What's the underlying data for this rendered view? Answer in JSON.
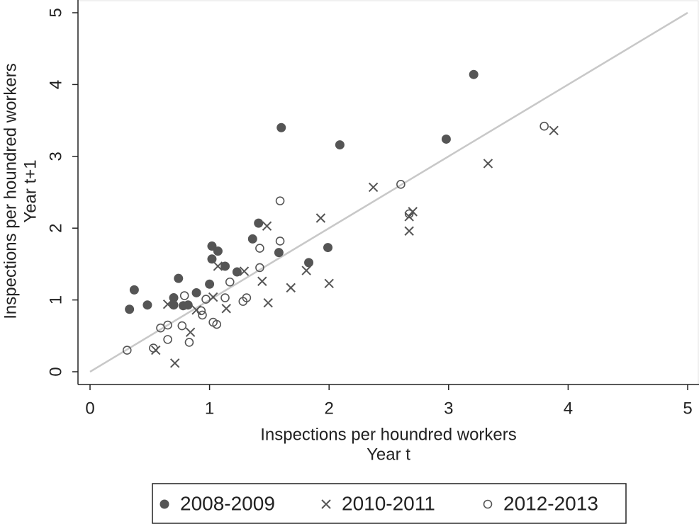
{
  "chart_data": {
    "type": "scatter",
    "x_label": [
      "Inspections per houndred workers",
      "Year t"
    ],
    "y_label": [
      "Inspections per houndred workers",
      "Year t+1"
    ],
    "xlim": [
      0,
      5
    ],
    "ylim": [
      0,
      5
    ],
    "xticks": [
      0,
      1,
      2,
      3,
      4,
      5
    ],
    "yticks": [
      0,
      1,
      2,
      3,
      4,
      5
    ],
    "reference_line": {
      "x": [
        0,
        5
      ],
      "y": [
        0,
        5
      ],
      "color": "#c8c8c8"
    },
    "series": [
      {
        "name": "2008-2009",
        "marker": "filled-circle",
        "color": "#555555",
        "x": [
          0.33,
          0.37,
          0.48,
          0.7,
          0.7,
          0.74,
          0.78,
          0.82,
          0.89,
          1.0,
          1.02,
          1.02,
          1.07,
          1.13,
          1.23,
          1.36,
          1.41,
          1.58,
          1.6,
          1.83,
          1.99,
          2.09,
          2.98,
          3.21
        ],
        "values": [
          0.87,
          1.14,
          0.93,
          1.03,
          0.93,
          1.3,
          0.92,
          0.93,
          1.1,
          1.22,
          1.75,
          1.57,
          1.68,
          1.47,
          1.39,
          1.85,
          2.07,
          1.66,
          3.4,
          1.52,
          1.73,
          3.16,
          3.24,
          4.14
        ]
      },
      {
        "name": "2010-2011",
        "marker": "cross",
        "color": "#555555",
        "x": [
          0.55,
          0.65,
          0.71,
          0.84,
          0.89,
          1.03,
          1.07,
          1.14,
          1.29,
          1.44,
          1.48,
          1.49,
          1.68,
          1.81,
          1.93,
          2.0,
          2.37,
          2.67,
          2.67,
          2.7,
          3.33,
          3.88
        ],
        "values": [
          0.3,
          0.94,
          0.12,
          0.55,
          0.86,
          1.04,
          1.47,
          0.88,
          1.4,
          1.26,
          2.03,
          0.96,
          1.17,
          1.41,
          2.14,
          1.23,
          2.57,
          1.96,
          2.16,
          2.23,
          2.9,
          3.36
        ]
      },
      {
        "name": "2012-2013",
        "marker": "open-circle",
        "color": "#555555",
        "x": [
          0.31,
          0.53,
          0.59,
          0.65,
          0.65,
          0.77,
          0.79,
          0.83,
          0.93,
          0.94,
          0.97,
          1.03,
          1.06,
          1.13,
          1.17,
          1.28,
          1.31,
          1.42,
          1.42,
          1.59,
          1.59,
          2.6,
          2.67,
          3.8
        ],
        "values": [
          0.3,
          0.33,
          0.61,
          0.45,
          0.65,
          0.64,
          1.06,
          0.41,
          0.85,
          0.79,
          1.01,
          0.69,
          0.66,
          1.03,
          1.25,
          0.98,
          1.03,
          1.72,
          1.45,
          1.82,
          2.38,
          2.61,
          2.2,
          3.42
        ]
      }
    ]
  }
}
